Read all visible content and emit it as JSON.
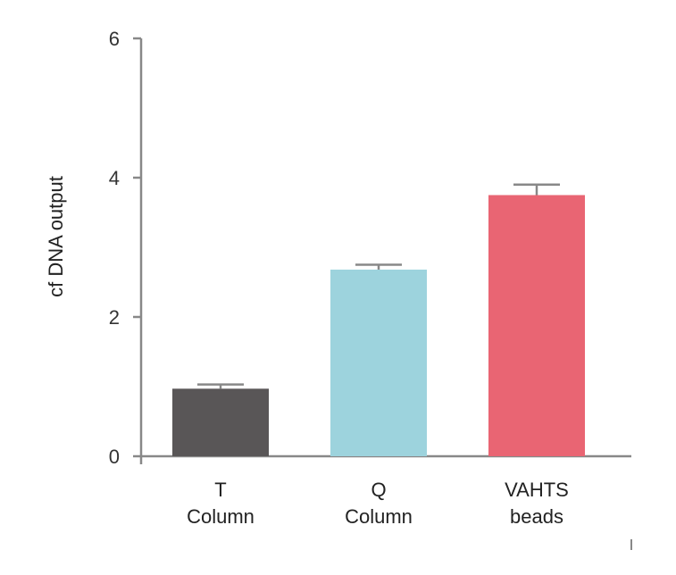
{
  "chart_data": {
    "type": "bar",
    "title": "",
    "xlabel": "",
    "ylabel": "cf DNA  output",
    "ylim": [
      0,
      6
    ],
    "yticks": [
      0,
      2,
      4,
      6
    ],
    "categories": [
      {
        "lines": [
          "T",
          "Column"
        ]
      },
      {
        "lines": [
          "Q",
          "Column"
        ]
      },
      {
        "lines": [
          "VAHTS",
          "beads"
        ]
      }
    ],
    "values": [
      0.97,
      2.68,
      3.75
    ],
    "errors": [
      0.06,
      0.07,
      0.15
    ],
    "colors": [
      "#595657",
      "#9dd3dd",
      "#e96573"
    ],
    "axis_color": "#888888",
    "grid": false,
    "legend": "none"
  }
}
